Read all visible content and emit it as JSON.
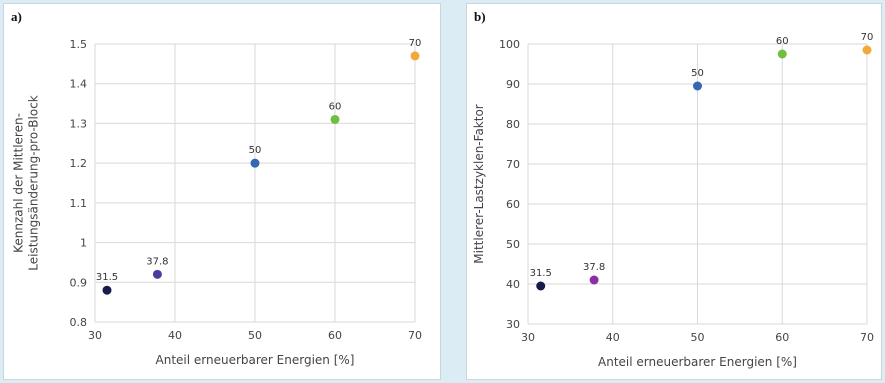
{
  "chart_data": [
    {
      "type": "scatter",
      "panel_label": "a)",
      "xlabel": "Anteil erneuerbarer Energien [%]",
      "ylabel_lines": [
        "Kennzahl der Mittleren-",
        "Leistungsänderung-pro-Block"
      ],
      "xlim": [
        30,
        70
      ],
      "ylim": [
        0.8,
        1.5
      ],
      "x_ticks": [
        30,
        40,
        50,
        60,
        70
      ],
      "y_ticks": [
        "0.8",
        "0.9",
        "1",
        "1.1",
        "1.2",
        "1.3",
        "1.4",
        "1.5"
      ],
      "grid": true,
      "points": [
        {
          "x": 31.5,
          "y": 0.88,
          "label": "31.5",
          "color": "#1b1b4b"
        },
        {
          "x": 37.8,
          "y": 0.92,
          "label": "37.8",
          "color": "#4b3b9e"
        },
        {
          "x": 50,
          "y": 1.2,
          "label": "50",
          "color": "#3568b0"
        },
        {
          "x": 60,
          "y": 1.31,
          "label": "60",
          "color": "#6fbf3f"
        },
        {
          "x": 70,
          "y": 1.47,
          "label": "70",
          "color": "#f2a93b"
        }
      ]
    },
    {
      "type": "scatter",
      "panel_label": "b)",
      "xlabel": "Anteil erneuerbarer Energien [%]",
      "ylabel_lines": [
        "Mittlerer-Lastzyklen-Faktor"
      ],
      "xlim": [
        30,
        70
      ],
      "ylim": [
        30,
        100
      ],
      "x_ticks": [
        30,
        40,
        50,
        60,
        70
      ],
      "y_ticks": [
        "30",
        "40",
        "50",
        "60",
        "70",
        "80",
        "90",
        "100"
      ],
      "grid": true,
      "points": [
        {
          "x": 31.5,
          "y": 39.5,
          "label": "31.5",
          "color": "#1b1b4b"
        },
        {
          "x": 37.8,
          "y": 41,
          "label": "37.8",
          "color": "#8a2fa5"
        },
        {
          "x": 50,
          "y": 89.5,
          "label": "50",
          "color": "#3568b0"
        },
        {
          "x": 60,
          "y": 97.5,
          "label": "60",
          "color": "#6fbf3f"
        },
        {
          "x": 70,
          "y": 98.5,
          "label": "70",
          "color": "#f2a93b"
        }
      ]
    }
  ]
}
